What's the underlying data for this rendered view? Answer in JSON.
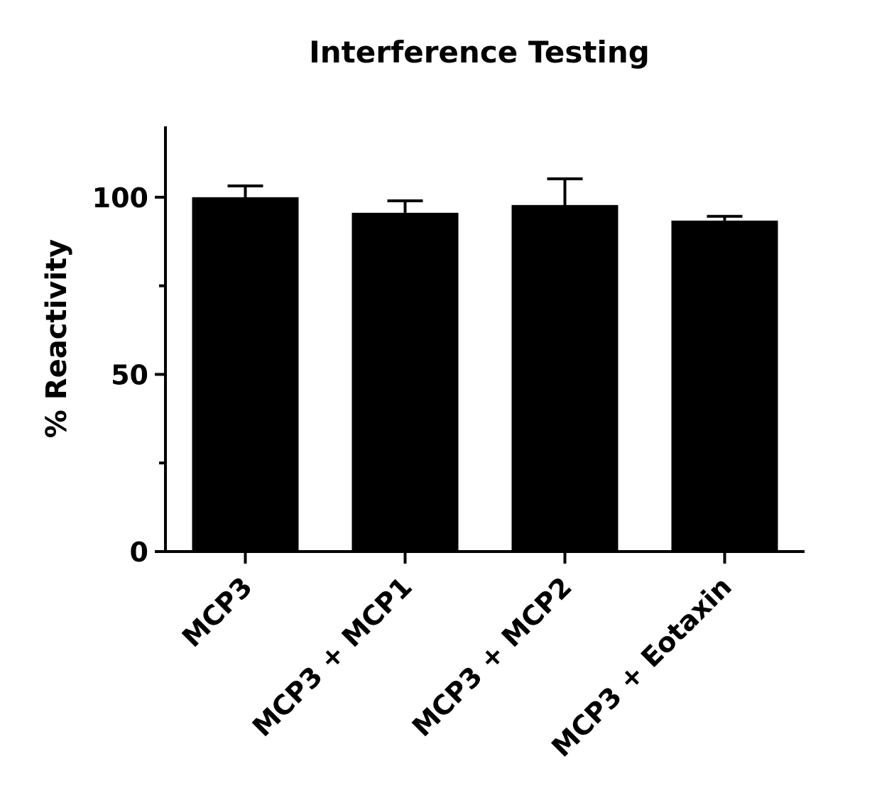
{
  "chart_data": {
    "type": "bar",
    "title": "Interference Testing",
    "y_label": "% Reactivity",
    "categories": [
      "MCP3",
      "MCP3 + MCP1",
      "MCP3 + MCP2",
      "MCP3 + Eotaxin"
    ],
    "values": [
      100,
      95.6,
      97.8,
      93.4
    ],
    "errors": [
      3.2,
      3.4,
      7.4,
      1.2
    ],
    "color": "#000000",
    "ylim": [
      0,
      120
    ],
    "yticks": [
      0,
      50,
      100
    ],
    "yminorticks": [
      25,
      75
    ],
    "grid": false
  }
}
